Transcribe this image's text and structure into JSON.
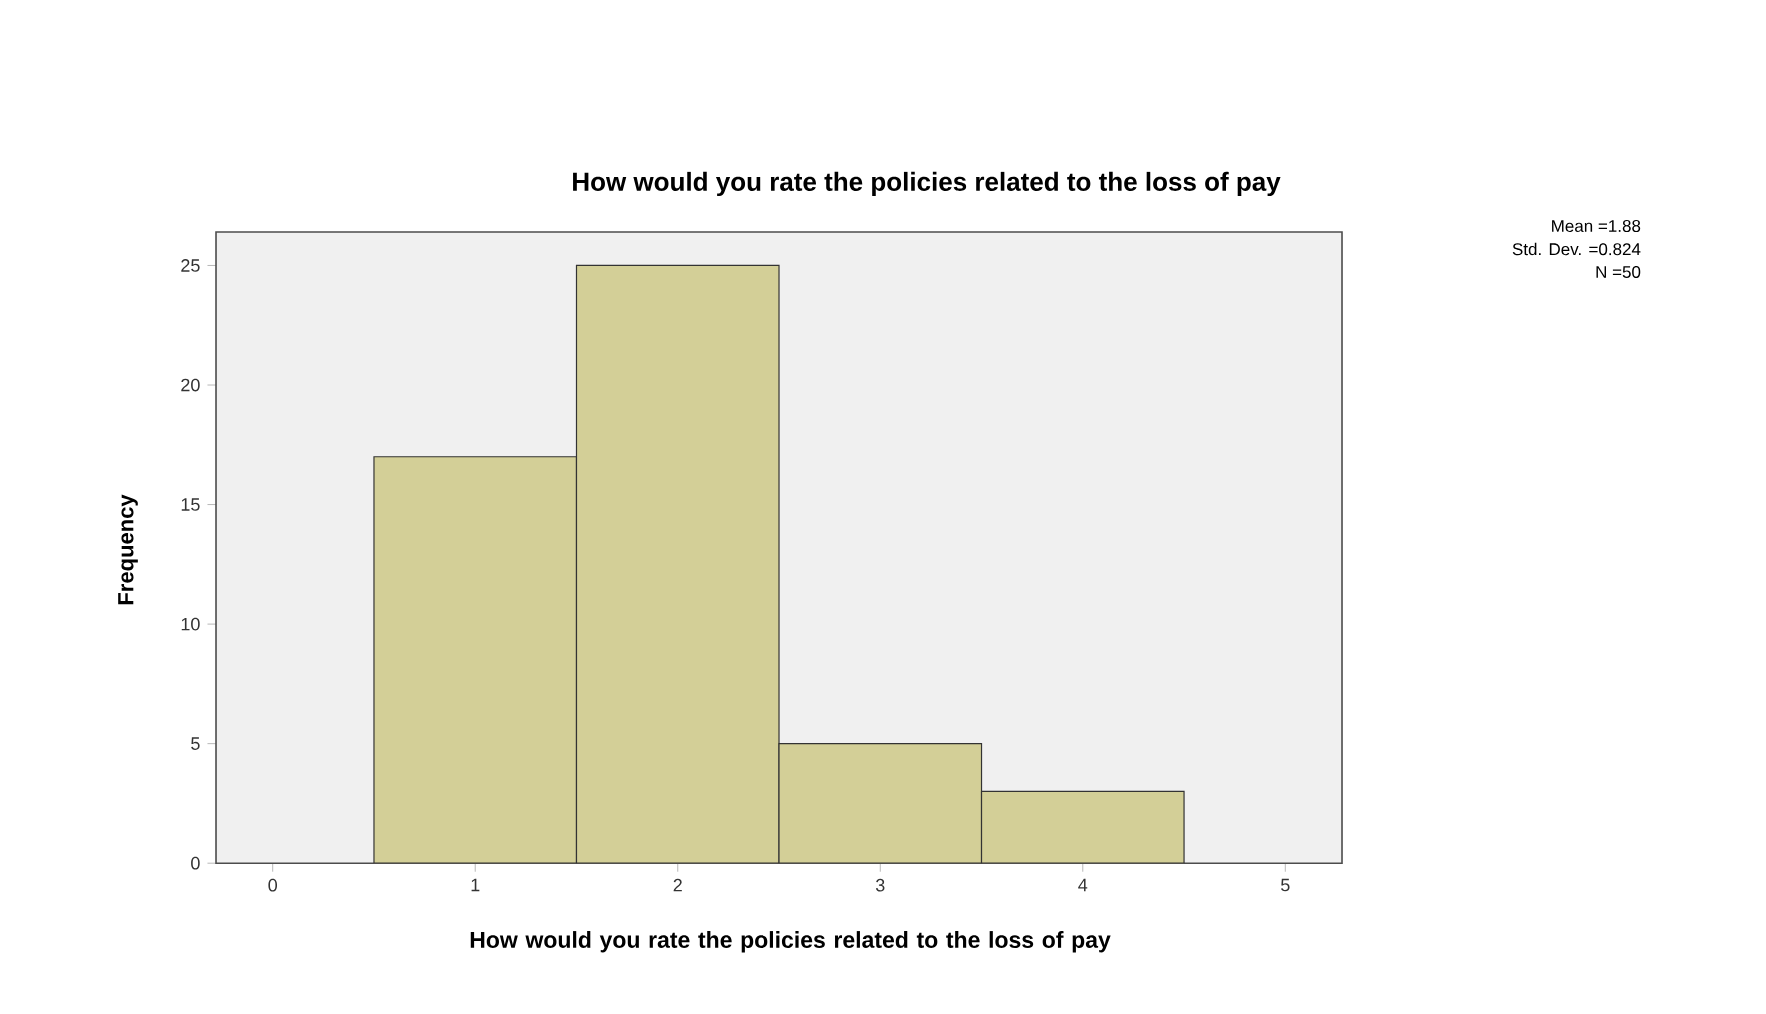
{
  "chart_data": {
    "type": "histogram",
    "title": "How would you rate the policies related to the loss of pay",
    "xlabel": "How would you rate the policies related to the loss of pay",
    "ylabel": "Frequency",
    "bins": [
      0.5,
      1.5,
      2.5,
      3.5,
      4.5
    ],
    "values": [
      17,
      25,
      5,
      3
    ],
    "color": "#d3cf97",
    "xlim": [
      -0.28,
      5.28
    ],
    "xticks": [
      0,
      1,
      2,
      3,
      4,
      5
    ],
    "ylim": [
      0,
      26.4
    ],
    "yticks": [
      0,
      5,
      10,
      15,
      20,
      25
    ],
    "grid": false,
    "annotations": [
      "Mean =1.88",
      "Std. Dev. =0.824",
      "N =50"
    ]
  }
}
